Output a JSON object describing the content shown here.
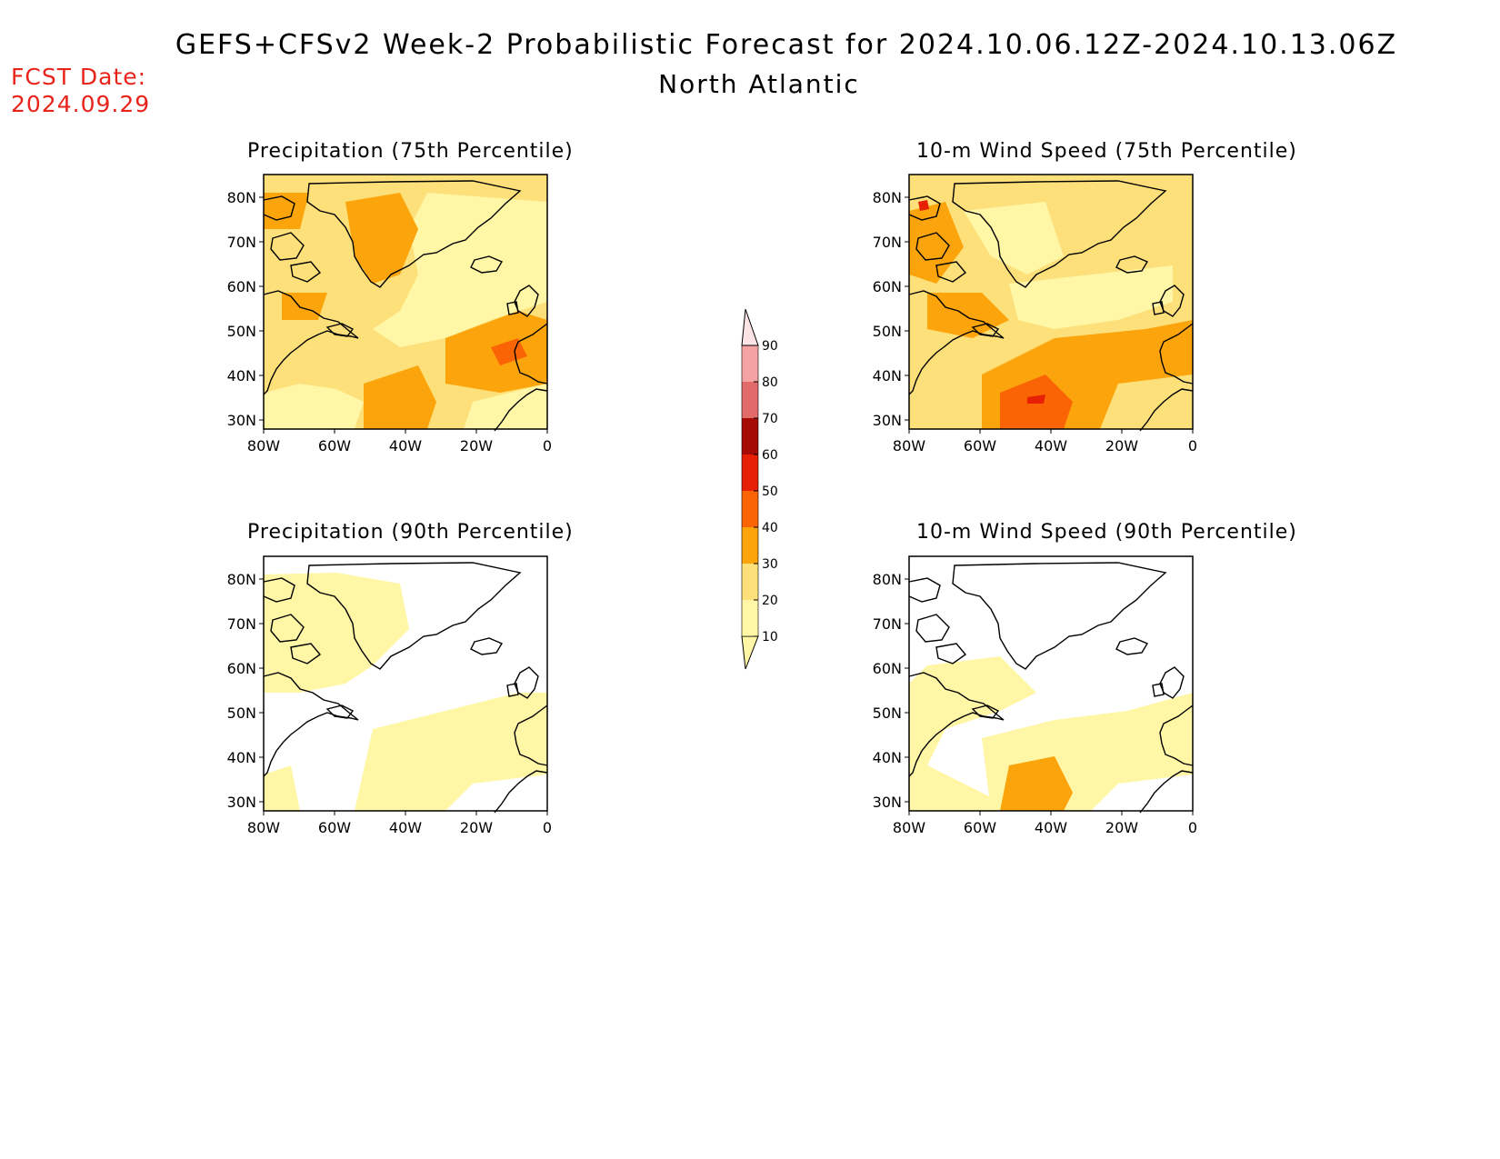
{
  "header": {
    "title": "GEFS+CFSv2 Week-2 Probabilistic Forecast for 2024.10.06.12Z-2024.10.13.06Z",
    "region": "North Atlantic",
    "fcst_label": "FCST Date:",
    "fcst_date": "2024.09.29"
  },
  "map_axes": {
    "lat_labels": [
      "80N",
      "70N",
      "60N",
      "50N",
      "40N",
      "30N"
    ],
    "lon_labels": [
      "80W",
      "60W",
      "40W",
      "20W",
      "0"
    ]
  },
  "panels": [
    {
      "id": "precip-75",
      "title": "Precipitation (75th Percentile)"
    },
    {
      "id": "wind-75",
      "title": "10-m Wind Speed (75th Percentile)"
    },
    {
      "id": "precip-90",
      "title": "Precipitation (90th Percentile)"
    },
    {
      "id": "wind-90",
      "title": "10-m Wind Speed (90th Percentile)"
    }
  ],
  "colorbar": {
    "levels": [
      "10",
      "20",
      "30",
      "40",
      "50",
      "60",
      "70",
      "80",
      "90"
    ],
    "colors": {
      "c10": "#fff6a6",
      "c20": "#fde07a",
      "c30": "#fca40c",
      "c40": "#fb6404",
      "c50": "#e71f04",
      "c60": "#a60a04",
      "c70": "#e36a6a",
      "c80": "#f5a2a2",
      "c90": "#fde4e4"
    }
  }
}
